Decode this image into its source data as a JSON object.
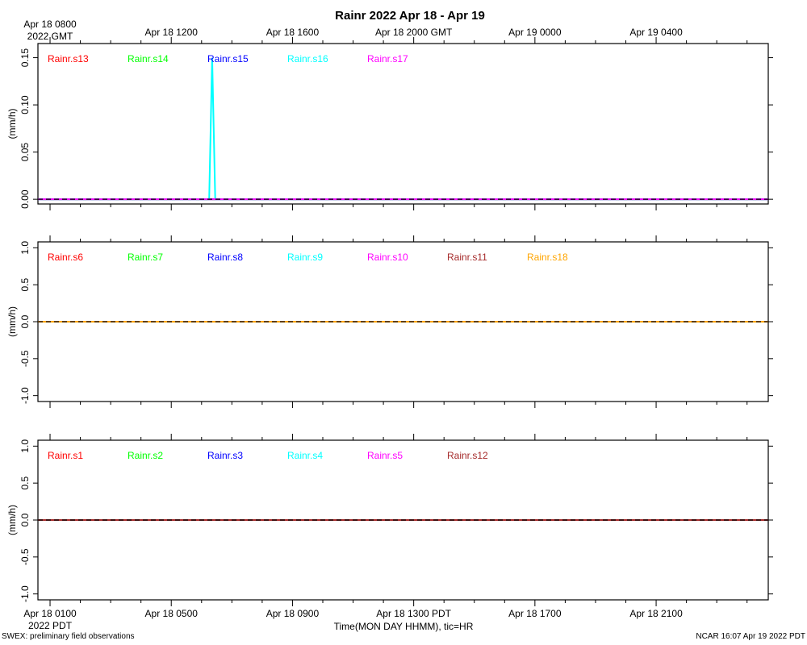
{
  "title": "Rainr 2022 Apr 18 - Apr 19",
  "footer_left": "SWEX: preliminary field observations",
  "footer_right": "NCAR 16:07 Apr 19 2022 PDT",
  "top_axis": {
    "first_label": [
      "Apr 18 0800",
      "2022 GMT"
    ],
    "labels": [
      "Apr 18 1200",
      "Apr 18 1600",
      "Apr 18 2000 GMT",
      "Apr 19 0000",
      "Apr 19 0400"
    ]
  },
  "bottom_axis": {
    "first_label": [
      "Apr 18 0100",
      "2022 PDT"
    ],
    "labels": [
      "Apr 18 0500",
      "Apr 18 0900",
      "Apr 18 1300 PDT",
      "Apr 18 1700",
      "Apr 18 2100"
    ],
    "xlabel": "Time(MON DAY HHMM), tic=HR"
  },
  "colors": {
    "red": "#ff0000",
    "green": "#00ff00",
    "blue": "#0000ff",
    "cyan": "#00ffff",
    "magenta": "#ff00ff",
    "brown": "#a52a2a",
    "orange": "#ffa500",
    "zero_line": "#000000"
  },
  "chart_data": [
    {
      "type": "line",
      "ylabel": "(mm/h)",
      "ylim": [
        -0.005,
        0.165
      ],
      "yticks": [
        "0.00",
        "0.05",
        "0.10",
        "0.15"
      ],
      "ytick_values": [
        0,
        0.05,
        0.1,
        0.15
      ],
      "x_unit": "hours since Apr 18 0100 PDT",
      "xlim": [
        -0.4,
        23.7
      ],
      "series": [
        {
          "name": "Rainr.s13",
          "color": "red",
          "x": [
            -0.4,
            23.7
          ],
          "y": [
            0,
            0
          ]
        },
        {
          "name": "Rainr.s14",
          "color": "green",
          "x": [
            -0.4,
            23.7
          ],
          "y": [
            0,
            0
          ]
        },
        {
          "name": "Rainr.s15",
          "color": "blue",
          "x": [
            -0.4,
            23.7
          ],
          "y": [
            0,
            0
          ]
        },
        {
          "name": "Rainr.s16",
          "color": "cyan",
          "x": [
            -0.4,
            5.25,
            5.35,
            5.45,
            23.7
          ],
          "y": [
            0,
            0,
            0.15,
            0,
            0
          ]
        },
        {
          "name": "Rainr.s17",
          "color": "magenta",
          "x": [
            -0.4,
            23.7
          ],
          "y": [
            0,
            0
          ]
        }
      ]
    },
    {
      "type": "line",
      "ylabel": "(mm/h)",
      "ylim": [
        -1.08,
        1.08
      ],
      "yticks": [
        "-1.0",
        "-0.5",
        "0.0",
        "0.5",
        "1.0"
      ],
      "ytick_values": [
        -1,
        -0.5,
        0,
        0.5,
        1
      ],
      "x_unit": "hours since Apr 18 0100 PDT",
      "xlim": [
        -0.4,
        23.7
      ],
      "series": [
        {
          "name": "Rainr.s6",
          "color": "red",
          "x": [
            -0.4,
            23.7
          ],
          "y": [
            0,
            0
          ]
        },
        {
          "name": "Rainr.s7",
          "color": "green",
          "x": [
            -0.4,
            23.7
          ],
          "y": [
            0,
            0
          ]
        },
        {
          "name": "Rainr.s8",
          "color": "blue",
          "x": [
            -0.4,
            23.7
          ],
          "y": [
            0,
            0
          ]
        },
        {
          "name": "Rainr.s9",
          "color": "cyan",
          "x": [
            -0.4,
            23.7
          ],
          "y": [
            0,
            0
          ]
        },
        {
          "name": "Rainr.s10",
          "color": "magenta",
          "x": [
            -0.4,
            23.7
          ],
          "y": [
            0,
            0
          ]
        },
        {
          "name": "Rainr.s11",
          "color": "brown",
          "x": [
            -0.4,
            23.7
          ],
          "y": [
            0,
            0
          ]
        },
        {
          "name": "Rainr.s18",
          "color": "orange",
          "x": [
            -0.4,
            23.7
          ],
          "y": [
            0,
            0
          ]
        }
      ]
    },
    {
      "type": "line",
      "ylabel": "(mm/h)",
      "ylim": [
        -1.08,
        1.08
      ],
      "yticks": [
        "-1.0",
        "-0.5",
        "0.0",
        "0.5",
        "1.0"
      ],
      "ytick_values": [
        -1,
        -0.5,
        0,
        0.5,
        1
      ],
      "x_unit": "hours since Apr 18 0100 PDT",
      "xlim": [
        -0.4,
        23.7
      ],
      "series": [
        {
          "name": "Rainr.s1",
          "color": "red",
          "x": [
            -0.4,
            23.7
          ],
          "y": [
            0,
            0
          ]
        },
        {
          "name": "Rainr.s2",
          "color": "green",
          "x": [
            -0.4,
            23.7
          ],
          "y": [
            0,
            0
          ]
        },
        {
          "name": "Rainr.s3",
          "color": "blue",
          "x": [
            -0.4,
            23.7
          ],
          "y": [
            0,
            0
          ]
        },
        {
          "name": "Rainr.s4",
          "color": "cyan",
          "x": [
            -0.4,
            23.7
          ],
          "y": [
            0,
            0
          ]
        },
        {
          "name": "Rainr.s5",
          "color": "magenta",
          "x": [
            -0.4,
            23.7
          ],
          "y": [
            0,
            0
          ]
        },
        {
          "name": "Rainr.s12",
          "color": "brown",
          "x": [
            -0.4,
            23.7
          ],
          "y": [
            0,
            0
          ]
        }
      ]
    }
  ]
}
